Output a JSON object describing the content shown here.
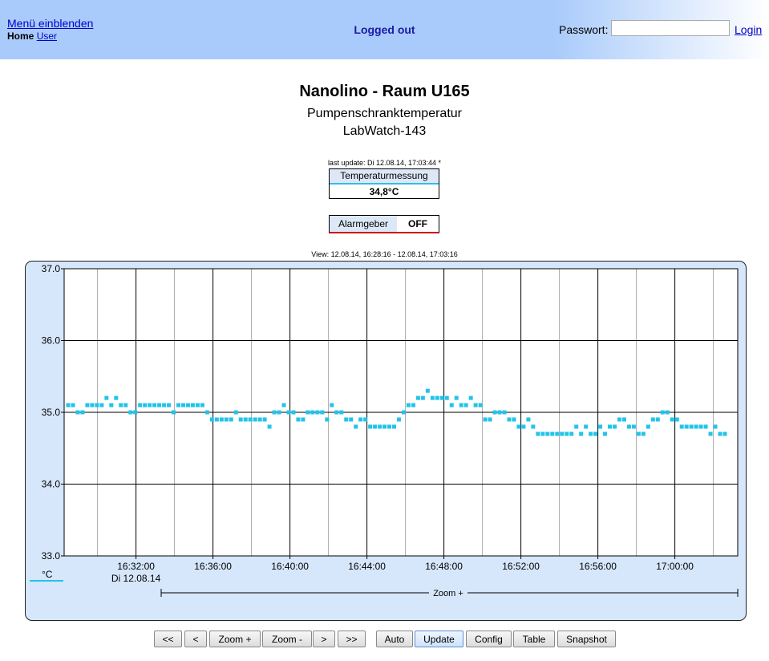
{
  "header": {
    "menu_link": "Menü einblenden",
    "breadcrumb_home": "Home",
    "breadcrumb_user": "User",
    "status": "Logged out",
    "password_label": "Passwort:",
    "password_value": "",
    "login_link": "Login"
  },
  "page": {
    "title": "Nanolino - Raum U165",
    "subtitle": "Pumpenschranktemperatur",
    "device": "LabWatch-143",
    "last_update": "last update: Di 12.08.14, 17:03:44 *"
  },
  "measurement": {
    "label": "Temperaturmessung",
    "value": "34,8°C",
    "accent": "#33bbee"
  },
  "alarm": {
    "label": "Alarmgeber",
    "value": "OFF",
    "accent": "#cc1111"
  },
  "view_range": "View: 12.08.14, 16:28:16 - 12.08.14, 17:03:16",
  "chart_data": {
    "type": "scatter",
    "ylabel": "°C",
    "ylim": [
      33.0,
      37.0
    ],
    "y_ticks": [
      "37.0",
      "36.0",
      "35.0",
      "34.0",
      "33.0"
    ],
    "x_ticks": [
      "16:32:00",
      "16:36:00",
      "16:40:00",
      "16:44:00",
      "16:48:00",
      "16:52:00",
      "16:56:00",
      "17:00:00"
    ],
    "date_label": "Di 12.08.14",
    "zoom_label": "Zoom +",
    "grid": true,
    "series_color": "#22c4e8",
    "values": [
      35.1,
      35.1,
      35.0,
      35.0,
      35.1,
      35.1,
      35.1,
      35.1,
      35.2,
      35.1,
      35.2,
      35.1,
      35.1,
      35.0,
      35.0,
      35.1,
      35.1,
      35.1,
      35.1,
      35.1,
      35.1,
      35.1,
      35.0,
      35.1,
      35.1,
      35.1,
      35.1,
      35.1,
      35.1,
      35.0,
      34.9,
      34.9,
      34.9,
      34.9,
      34.9,
      35.0,
      34.9,
      34.9,
      34.9,
      34.9,
      34.9,
      34.9,
      34.8,
      35.0,
      35.0,
      35.1,
      35.0,
      35.0,
      34.9,
      34.9,
      35.0,
      35.0,
      35.0,
      35.0,
      34.9,
      35.1,
      35.0,
      35.0,
      34.9,
      34.9,
      34.8,
      34.9,
      34.9,
      34.8,
      34.8,
      34.8,
      34.8,
      34.8,
      34.8,
      34.9,
      35.0,
      35.1,
      35.1,
      35.2,
      35.2,
      35.3,
      35.2,
      35.2,
      35.2,
      35.2,
      35.1,
      35.2,
      35.1,
      35.1,
      35.2,
      35.1,
      35.1,
      34.9,
      34.9,
      35.0,
      35.0,
      35.0,
      34.9,
      34.9,
      34.8,
      34.8,
      34.9,
      34.8,
      34.7,
      34.7,
      34.7,
      34.7,
      34.7,
      34.7,
      34.7,
      34.7,
      34.8,
      34.7,
      34.8,
      34.7,
      34.7,
      34.8,
      34.7,
      34.8,
      34.8,
      34.9,
      34.9,
      34.8,
      34.8,
      34.7,
      34.7,
      34.8,
      34.9,
      34.9,
      35.0,
      35.0,
      34.9,
      34.9,
      34.8,
      34.8,
      34.8,
      34.8,
      34.8,
      34.8,
      34.7,
      34.8,
      34.7,
      34.7
    ]
  },
  "buttons": [
    {
      "id": "btn-first",
      "label": "<<"
    },
    {
      "id": "btn-prev",
      "label": "<"
    },
    {
      "id": "btn-zoom-in",
      "label": "Zoom +"
    },
    {
      "id": "btn-zoom-out",
      "label": "Zoom -"
    },
    {
      "id": "btn-next",
      "label": ">"
    },
    {
      "id": "btn-last",
      "label": ">>"
    },
    {
      "id": "btn-auto",
      "label": "Auto"
    },
    {
      "id": "btn-update",
      "label": "Update",
      "active": true
    },
    {
      "id": "btn-config",
      "label": "Config"
    },
    {
      "id": "btn-table",
      "label": "Table"
    },
    {
      "id": "btn-snapshot",
      "label": "Snapshot"
    }
  ]
}
